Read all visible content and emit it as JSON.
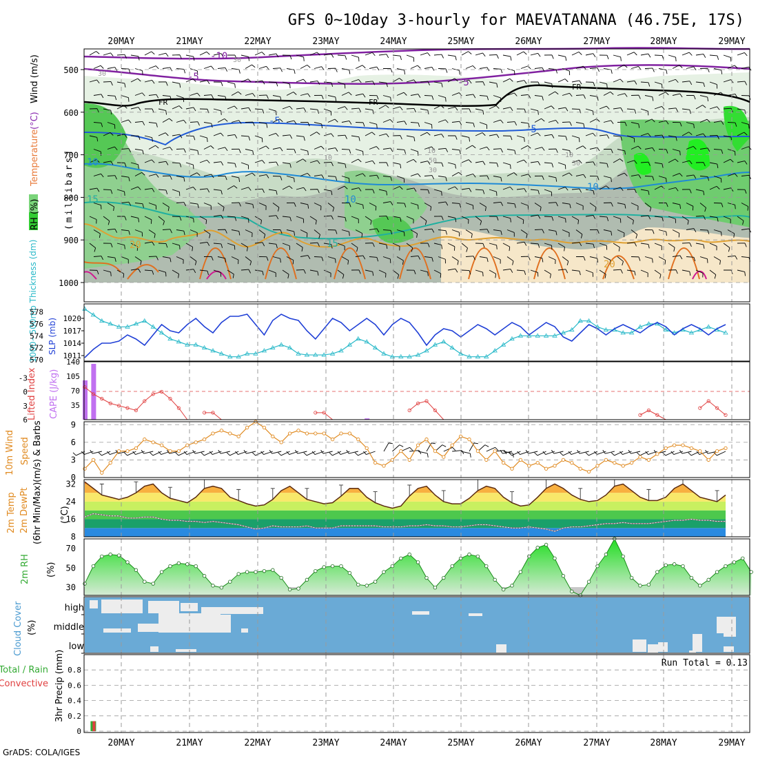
{
  "title": "GFS 0~10day 3-hourly for MAEVATANANA (46.75E, 17S)",
  "footer": "GrADS: COLA/IGES",
  "dates": [
    "20MAY",
    "21MAY",
    "22MAY",
    "23MAY",
    "24MAY",
    "25MAY",
    "26MAY",
    "27MAY",
    "28MAY",
    "29MAY"
  ],
  "colors": {
    "slp": "#1f3fd6",
    "thickness": "#26b8c8",
    "lifted_index": "#e04040",
    "cape": "#c070f0",
    "wind_speed": "#e08a20",
    "barb": "#5a4030",
    "rh_line": "#33aa33",
    "cloud_bg": "#6aaad6",
    "cloud_gap": "#ffffff",
    "precip_total": "#33aa33",
    "precip_conv": "#e04040"
  },
  "panels": {
    "upper": {
      "ylabel_parts": [
        "RH (%)",
        "Temperature",
        "(°C)",
        "Wind (m/s)"
      ],
      "ylabel2": "(millibars)",
      "yticks": [
        "500",
        "600",
        "700",
        "800",
        "900",
        "1000"
      ],
      "contour_labels": {
        "purple": [
          "-10",
          "-5",
          "-5"
        ],
        "freezing": [
          "FR",
          "FR",
          "FR"
        ],
        "blue": [
          "-5",
          "-5",
          "10",
          "10",
          "10"
        ],
        "teal": [
          "15",
          "15"
        ],
        "orange": [
          "20",
          "20"
        ],
        "grey": [
          "30",
          "30",
          "10",
          "10",
          "30",
          "10",
          "50",
          "30"
        ]
      }
    },
    "slp": {
      "ylabel_left": "1000~500mb Thickness (dm)",
      "ylabel_right": "SLP (mb)",
      "thick_ticks": [
        "570",
        "572",
        "574",
        "576",
        "578"
      ],
      "slp_ticks": [
        "1011",
        "1014",
        "1017",
        "1020"
      ]
    },
    "cape": {
      "ylabel_left": "Lifted Index",
      "ylabel_right": "CAPE (J/kg)",
      "li_ticks": [
        "-3",
        "0",
        "3",
        "6"
      ],
      "cape_ticks": [
        "35",
        "70",
        "105",
        "140"
      ]
    },
    "wind": {
      "ylabel": [
        "10m Wind",
        "Speed",
        "(m/s) & Barbs"
      ],
      "yticks": [
        "0",
        "3",
        "6",
        "9"
      ]
    },
    "temp": {
      "ylabel": [
        "2m Temp",
        "2m DewPt",
        "(6hr Min/Max)",
        "(°C)"
      ],
      "yticks": [
        "8",
        "16",
        "24",
        "32"
      ]
    },
    "rh": {
      "ylabel": [
        "2m RH",
        "(%)"
      ],
      "yticks": [
        "30",
        "50",
        "70"
      ]
    },
    "cloud": {
      "ylabel": [
        "Cloud Cover",
        "(%)"
      ],
      "levels": [
        "high",
        "middle",
        "low"
      ]
    },
    "precip": {
      "ylabel": [
        "Total / Rain",
        "Convective",
        "3hr Precip (mm)"
      ],
      "yticks": [
        "0",
        "0.2",
        "0.4",
        "0.6",
        "0.8"
      ],
      "run_total": "Run Total = 0.13"
    }
  },
  "chart_data": [
    {
      "type": "line",
      "title": "1000~500mb Thickness (dm) and SLP (mb)",
      "x_step_hours": 3,
      "series": [
        {
          "name": "SLP (mb)",
          "ylim": [
            1010,
            1023
          ],
          "values": [
            1010.5,
            1012.5,
            1014,
            1014,
            1014.5,
            1016,
            1015,
            1013.5,
            1016,
            1018.5,
            1017,
            1016.5,
            1018.5,
            1020,
            1018,
            1016.5,
            1019,
            1020.5,
            1020.5,
            1021,
            1018.5,
            1016,
            1019.5,
            1021,
            1020,
            1019.5,
            1017,
            1015,
            1017.5,
            1020,
            1019,
            1017,
            1018.5,
            1020,
            1018.5,
            1016,
            1018.5,
            1020,
            1019,
            1016.5,
            1013.5,
            1016,
            1017.5,
            1017,
            1015.5,
            1017,
            1018.5,
            1017.5,
            1016,
            1017.5,
            1019,
            1018,
            1016,
            1017.5,
            1019,
            1018,
            1015.5,
            1014.5,
            1016.5,
            1018.5,
            1017.5,
            1016,
            1017.5,
            1018.5,
            1017.5,
            1016.5,
            1018,
            1019,
            1018,
            1016,
            1017.5,
            1018.5,
            1017.5,
            1016,
            1017.5,
            1018.5
          ]
        },
        {
          "name": "1000~500mb Thickness (dm)",
          "ylim": [
            570,
            579
          ],
          "values": [
            578.5,
            577.5,
            576.5,
            576,
            575.5,
            575.5,
            576,
            576.5,
            575.5,
            574.5,
            573.5,
            573,
            572.5,
            572.5,
            572,
            571.5,
            571,
            570.5,
            570.5,
            571,
            571,
            571.5,
            572,
            572.5,
            572,
            571,
            570.8,
            570.8,
            570.8,
            571,
            571.5,
            572.5,
            573.5,
            573,
            572,
            571,
            570.5,
            570.5,
            570.5,
            570.8,
            571.5,
            572.5,
            573,
            572,
            571,
            570.5,
            570.5,
            570.5,
            571.5,
            572.5,
            573.5,
            574,
            574,
            574,
            574,
            574,
            574.5,
            575,
            576.5,
            576.5,
            575.5,
            575,
            575,
            574.5,
            574.5,
            575.5,
            576,
            576,
            575,
            574.5,
            575,
            574.5,
            575,
            575.5,
            575,
            574.5
          ]
        }
      ]
    },
    {
      "type": "bar",
      "title": "CAPE (J/kg) and Lifted Index",
      "series": [
        {
          "name": "CAPE (J/kg)",
          "bars": [
            [
              0,
              95
            ],
            [
              1,
              135
            ],
            [
              33,
              3
            ],
            [
              294,
              16
            ]
          ]
        },
        {
          "name": "Lifted Index",
          "values": [
            -1,
            0.5,
            1.5,
            2.5,
            3,
            3.5,
            4,
            2,
            0.5,
            0,
            1.5,
            3.5,
            6,
            6,
            4.5,
            4.5,
            6,
            6,
            6,
            6,
            6,
            6,
            6,
            6,
            6,
            6,
            6,
            4.5,
            4.5,
            6,
            6,
            6,
            6,
            6,
            6,
            6,
            6,
            6,
            4,
            2.5,
            2,
            4,
            6,
            6,
            6,
            6,
            6,
            6,
            6,
            6,
            6,
            6,
            6,
            6,
            6,
            6,
            6,
            6,
            6,
            6,
            6,
            6,
            6,
            6,
            6,
            5,
            4,
            5,
            6,
            6,
            6,
            6,
            3.5,
            2,
            3.5,
            5
          ]
        }
      ]
    },
    {
      "type": "line",
      "title": "10m Wind Speed (m/s)",
      "ylim": [
        0,
        9.5
      ],
      "values": [
        1.5,
        3,
        0.8,
        2.5,
        4.5,
        4.5,
        5,
        6.5,
        6,
        5.5,
        4.5,
        4.5,
        5.5,
        6,
        6.5,
        7.5,
        8,
        7.5,
        7,
        8.5,
        9.5,
        8.5,
        7,
        6,
        7.5,
        8,
        7.5,
        7.5,
        7.5,
        6.5,
        7.5,
        7.5,
        6.5,
        5,
        2.5,
        2,
        3,
        4.5,
        3,
        5.5,
        6.5,
        4.5,
        3.5,
        5.5,
        7,
        6.5,
        4.5,
        3,
        4.5,
        2.5,
        1.5,
        3,
        2,
        2.5,
        1.5,
        2,
        3,
        2.5,
        1.5,
        1,
        2,
        3,
        2.5,
        2,
        2.5,
        3.5,
        3,
        4,
        5,
        5.5,
        5.5,
        5,
        4.5,
        3,
        4.5,
        5
      ]
    },
    {
      "type": "line",
      "title": "2m Temp / DewPt (°C)",
      "ylim": [
        8,
        34
      ],
      "series": [
        {
          "name": "2m Temp",
          "values": [
            33,
            30,
            27,
            26,
            25,
            26,
            28,
            31,
            32,
            28,
            25.5,
            24.5,
            23.5,
            26,
            30,
            31,
            30,
            26,
            24.5,
            23,
            22,
            22.5,
            25,
            29,
            31,
            28,
            25,
            24,
            23,
            23.5,
            26.5,
            30,
            30,
            26,
            23.5,
            22,
            21,
            22,
            26.5,
            30,
            31,
            27,
            24,
            23,
            23,
            25.5,
            29,
            31,
            30,
            26,
            23.5,
            22,
            22.5,
            26,
            30,
            32,
            30,
            27,
            25,
            24,
            24.5,
            27,
            31,
            32,
            29,
            26,
            24.5,
            24.5,
            26,
            30,
            32,
            29,
            26,
            25,
            24,
            27
          ]
        },
        {
          "name": "2m DewPt",
          "values": [
            17,
            18.5,
            18,
            17.5,
            17.5,
            16.5,
            16.5,
            17,
            17,
            16,
            15.5,
            15.5,
            15,
            15,
            14.5,
            15,
            14.5,
            14,
            13.5,
            12.5,
            11.5,
            12,
            13,
            12.5,
            12.5,
            12.5,
            13,
            12,
            12,
            12,
            13,
            13,
            13,
            13,
            13,
            12.5,
            12.5,
            12.5,
            13,
            13,
            13.5,
            13,
            13,
            12.5,
            12.5,
            13,
            13.5,
            13.5,
            13,
            12.5,
            12,
            12,
            12.5,
            12,
            11.5,
            10.5,
            12,
            12.5,
            12.5,
            13,
            13.5,
            14,
            14,
            14.5,
            14,
            14,
            14,
            14.5,
            15,
            15.5,
            15.5,
            16,
            15.5,
            15.5,
            15,
            15
          ]
        }
      ]
    },
    {
      "type": "area",
      "title": "2m RH (%)",
      "ylim": [
        22,
        80
      ],
      "values": [
        34,
        52,
        62,
        64,
        63,
        56,
        48,
        36,
        34,
        46,
        52,
        55,
        54,
        52,
        42,
        32,
        30,
        36,
        44,
        46,
        46,
        47,
        48,
        40,
        28,
        29,
        38,
        47,
        51,
        52,
        52,
        45,
        33,
        32,
        36,
        46,
        52,
        60,
        64,
        56,
        40,
        30,
        40,
        52,
        60,
        64,
        62,
        52,
        38,
        28,
        32,
        46,
        62,
        71,
        74,
        60,
        42,
        26,
        22,
        36,
        52,
        64,
        80,
        62,
        40,
        32,
        33,
        46,
        53,
        54,
        52,
        40,
        32,
        38,
        46,
        52,
        56,
        60,
        46
      ]
    },
    {
      "type": "bar",
      "title": "3hr Precip (mm)",
      "ylim": [
        0,
        1
      ],
      "series": [
        {
          "name": "Total / Rain",
          "bars": [
            [
              1,
              0.13
            ]
          ]
        },
        {
          "name": "Convective",
          "bars": [
            [
              1,
              0.13
            ]
          ]
        }
      ]
    }
  ]
}
